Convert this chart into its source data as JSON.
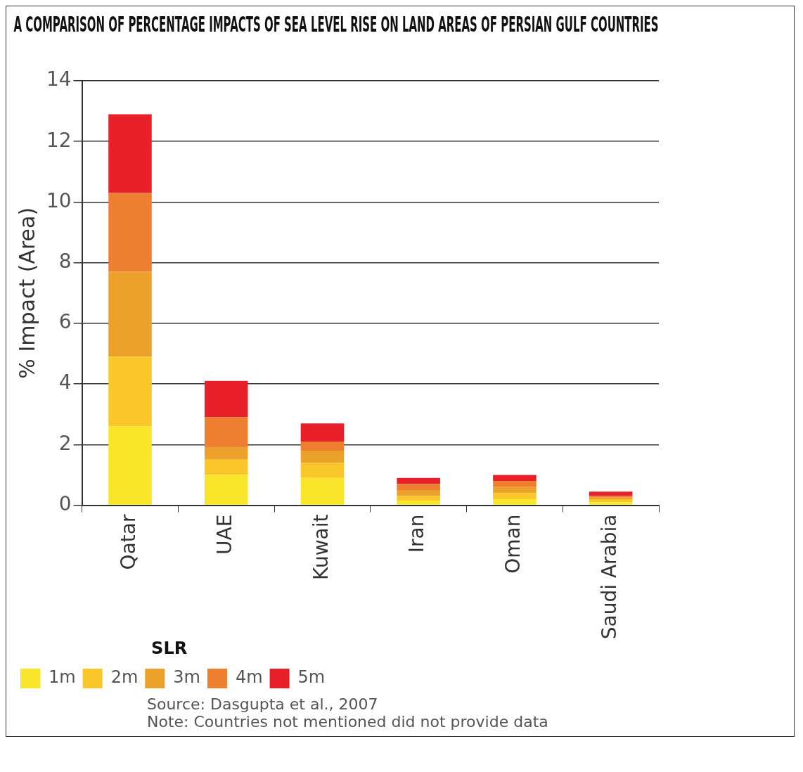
{
  "chart_data": {
    "type": "bar",
    "title": "A COMPARISON OF PERCENTAGE IMPACTS OF SEA LEVEL RISE ON LAND AREAS OF PERSIAN GULF COUNTRIES",
    "ylabel": "% Impact (Area)",
    "legend_title": "SLR",
    "categories": [
      "Qatar",
      "UAE",
      "Kuwait",
      "Iran",
      "Oman",
      "Saudi Arabia"
    ],
    "stacked": true,
    "series": [
      {
        "name": "1m",
        "color": "#f9e52a",
        "values": [
          2.6,
          1.0,
          0.9,
          0.15,
          0.2,
          0.1
        ]
      },
      {
        "name": "2m",
        "color": "#f9c72a",
        "values": [
          2.3,
          0.5,
          0.5,
          0.15,
          0.2,
          0.1
        ]
      },
      {
        "name": "3m",
        "color": "#eca22a",
        "values": [
          2.8,
          0.4,
          0.4,
          0.2,
          0.2,
          0.05
        ]
      },
      {
        "name": "4m",
        "color": "#ee7f30",
        "values": [
          2.6,
          1.0,
          0.3,
          0.2,
          0.2,
          0.05
        ]
      },
      {
        "name": "5m",
        "color": "#e8202a",
        "values": [
          2.6,
          1.2,
          0.6,
          0.2,
          0.2,
          0.15
        ]
      }
    ],
    "ylim": [
      0,
      14
    ],
    "yticks": [
      0,
      2,
      4,
      6,
      8,
      10,
      12,
      14
    ],
    "grid": "y",
    "legend": "bottom left",
    "annotations": [
      "Source: Dasgupta et al., 2007",
      "Note: Countries not mentioned did not provide data"
    ]
  }
}
